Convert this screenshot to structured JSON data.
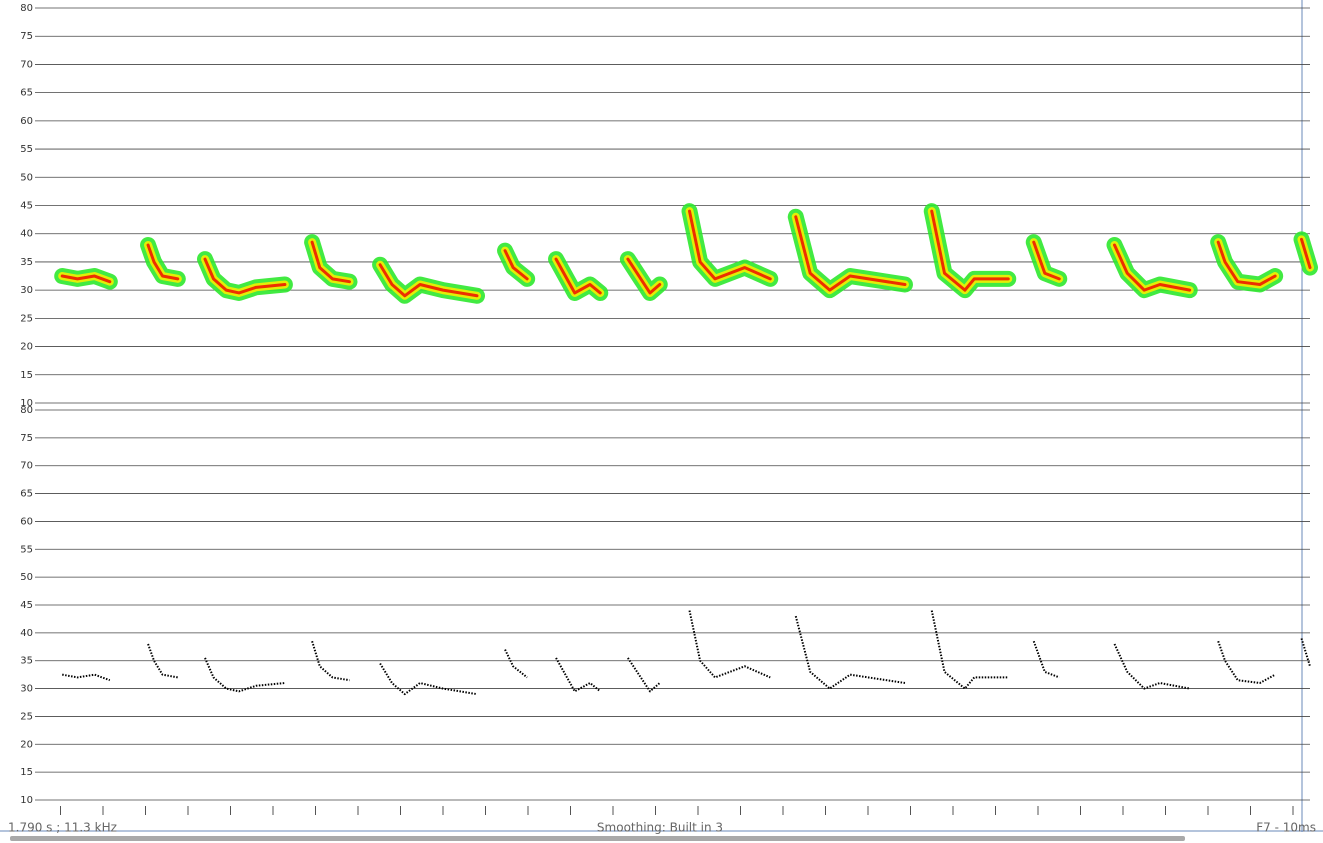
{
  "chart_data": [
    {
      "type": "spectrogram",
      "ylim": [
        10,
        80
      ],
      "yticks": [
        10,
        15,
        20,
        25,
        30,
        35,
        40,
        45,
        50,
        55,
        60,
        65,
        70,
        75,
        80
      ],
      "xlim": [
        0,
        300
      ],
      "colors": [
        "#2ee82e",
        "#f4f000",
        "#ee1a00"
      ],
      "series": [
        {
          "x": [
            6.4,
            10,
            14,
            17.6
          ],
          "y": [
            32.5,
            32,
            32.5,
            31.5
          ]
        },
        {
          "x": [
            26.6,
            28,
            30,
            33.6
          ],
          "y": [
            38,
            35,
            32.5,
            32
          ]
        },
        {
          "x": [
            40,
            42,
            45,
            48,
            52,
            58.8
          ],
          "y": [
            35.5,
            32,
            30,
            29.5,
            30.5,
            31
          ]
        },
        {
          "x": [
            65.2,
            67,
            70,
            74
          ],
          "y": [
            38.5,
            34,
            32,
            31.5
          ]
        },
        {
          "x": [
            81.2,
            84,
            87,
            90.6,
            96,
            104
          ],
          "y": [
            34.5,
            31,
            29,
            31,
            30,
            29
          ]
        },
        {
          "x": [
            110.6,
            112.5,
            115.8
          ],
          "y": [
            37,
            34,
            32
          ]
        },
        {
          "x": [
            122.6,
            127,
            130.6,
            133
          ],
          "y": [
            35.5,
            29.5,
            31,
            29.5
          ]
        },
        {
          "x": [
            139.5,
            144.7,
            147
          ],
          "y": [
            35.5,
            29.5,
            31
          ]
        },
        {
          "x": [
            154,
            156.5,
            160,
            167,
            173
          ],
          "y": [
            44,
            35,
            32,
            34,
            32
          ]
        },
        {
          "x": [
            179,
            182.4,
            187,
            191.8,
            204.7
          ],
          "y": [
            43,
            33,
            30,
            32.5,
            31
          ]
        },
        {
          "x": [
            211,
            214,
            218.8,
            221,
            229
          ],
          "y": [
            44,
            33,
            30,
            32,
            32
          ]
        },
        {
          "x": [
            235,
            237.6,
            241
          ],
          "y": [
            38.5,
            33,
            32
          ]
        },
        {
          "x": [
            254,
            257,
            261,
            264.7,
            271.7
          ],
          "y": [
            38,
            33,
            30,
            31,
            30
          ]
        },
        {
          "x": [
            278.4,
            280,
            283,
            288.2,
            291.8
          ],
          "y": [
            38.5,
            35,
            31.5,
            31,
            32.5
          ]
        },
        {
          "x": [
            298,
            300
          ],
          "y": [
            39,
            34
          ]
        }
      ]
    },
    {
      "type": "scatter",
      "ylim": [
        10,
        80
      ],
      "yticks": [
        10,
        15,
        20,
        25,
        30,
        35,
        40,
        45,
        50,
        55,
        60,
        65,
        70,
        75,
        80
      ],
      "xlim": [
        0,
        300
      ],
      "xticks": [
        6,
        16,
        26,
        36,
        46,
        56,
        66,
        76,
        86,
        96,
        106,
        116,
        126,
        136,
        146,
        156,
        166,
        176,
        186,
        196,
        206,
        216,
        226,
        236,
        246,
        256,
        266,
        276,
        286,
        296
      ],
      "color": "#000000",
      "series": [
        {
          "x": [
            6.4,
            10,
            14,
            17.6
          ],
          "y": [
            32.5,
            32,
            32.5,
            31.5
          ]
        },
        {
          "x": [
            26.6,
            28,
            30,
            33.6
          ],
          "y": [
            38,
            35,
            32.5,
            32
          ]
        },
        {
          "x": [
            40,
            42,
            45,
            48,
            52,
            58.8
          ],
          "y": [
            35.5,
            32,
            30,
            29.5,
            30.5,
            31
          ]
        },
        {
          "x": [
            65.2,
            67,
            70,
            74
          ],
          "y": [
            38.5,
            34,
            32,
            31.5
          ]
        },
        {
          "x": [
            81.2,
            84,
            87,
            90.6,
            96,
            104
          ],
          "y": [
            34.5,
            31,
            29,
            31,
            30,
            29
          ]
        },
        {
          "x": [
            110.6,
            112.5,
            115.8
          ],
          "y": [
            37,
            34,
            32
          ]
        },
        {
          "x": [
            122.6,
            127,
            130.6,
            133
          ],
          "y": [
            35.5,
            29.5,
            31,
            29.5
          ]
        },
        {
          "x": [
            139.5,
            144.7,
            147
          ],
          "y": [
            35.5,
            29.5,
            31
          ]
        },
        {
          "x": [
            154,
            156.5,
            160,
            167,
            173
          ],
          "y": [
            44,
            35,
            32,
            34,
            32
          ]
        },
        {
          "x": [
            179,
            182.4,
            187,
            191.8,
            204.7
          ],
          "y": [
            43,
            33,
            30,
            32.5,
            31
          ]
        },
        {
          "x": [
            211,
            214,
            218.8,
            221,
            229
          ],
          "y": [
            44,
            33,
            30,
            32,
            32
          ]
        },
        {
          "x": [
            235,
            237.6,
            241
          ],
          "y": [
            38.5,
            33,
            32
          ]
        },
        {
          "x": [
            254,
            257,
            261,
            264.7,
            271.7
          ],
          "y": [
            38,
            33,
            30,
            31,
            30
          ]
        },
        {
          "x": [
            278.4,
            280,
            283,
            288.2,
            291.8
          ],
          "y": [
            38.5,
            35,
            31.5,
            31,
            32.5
          ]
        },
        {
          "x": [
            298,
            300
          ],
          "y": [
            39,
            34
          ]
        }
      ]
    }
  ],
  "status_bar": {
    "cursor": "1.790 s ; 11.3 kHz",
    "smoothing": "Smoothing: Built in 3",
    "mode": "F7 - 10ms"
  }
}
